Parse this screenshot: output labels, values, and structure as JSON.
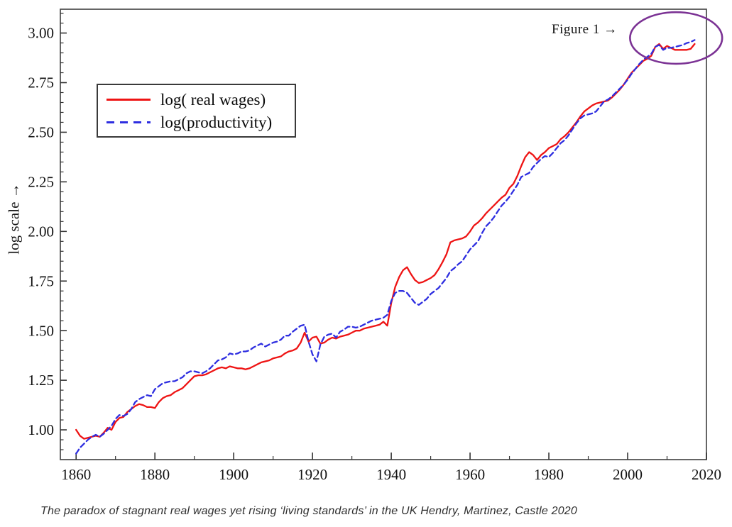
{
  "caption": "The paradox of stagnant real wages yet rising ‘living standards’ in the UK Hendry, Martinez, Castle 2020",
  "chart_data": {
    "type": "line",
    "title": "",
    "xlabel": "",
    "ylabel": "log scale →",
    "grid": false,
    "legend_position": "upper-left-inside",
    "xlim": [
      1856,
      2020
    ],
    "ylim": [
      0.85,
      3.12
    ],
    "x_ticks": {
      "major_start": 1860,
      "major_step": 20,
      "major_end": 2020,
      "minor_step": 10
    },
    "y_ticks": {
      "major_start": 1.0,
      "major_step": 0.25,
      "major_end": 3.0,
      "minor_step": 0.05
    },
    "annotation": {
      "label": "Figure 1 →",
      "ellipse": {
        "center_year": 2012.3,
        "center_value": 2.975,
        "rx_years": 11.7,
        "ry_value": 0.13,
        "color": "#7b3294"
      }
    },
    "colors": {
      "real_wages": "#ee1414",
      "productivity": "#2e2ee0",
      "border": "#4a4a4a",
      "ticks": "#333333"
    },
    "x_start_year": 1860,
    "series": [
      {
        "label": "log( real wages)",
        "color": "#ee1414",
        "style": "solid",
        "values": [
          1.0,
          0.97,
          0.955,
          0.96,
          0.965,
          0.97,
          0.965,
          0.985,
          1.01,
          1.0,
          1.04,
          1.06,
          1.065,
          1.09,
          1.105,
          1.12,
          1.13,
          1.125,
          1.115,
          1.115,
          1.11,
          1.14,
          1.16,
          1.17,
          1.175,
          1.19,
          1.2,
          1.21,
          1.23,
          1.25,
          1.27,
          1.275,
          1.275,
          1.28,
          1.29,
          1.3,
          1.31,
          1.315,
          1.31,
          1.32,
          1.315,
          1.31,
          1.31,
          1.305,
          1.31,
          1.32,
          1.33,
          1.34,
          1.345,
          1.35,
          1.36,
          1.365,
          1.37,
          1.385,
          1.395,
          1.4,
          1.41,
          1.44,
          1.49,
          1.445,
          1.465,
          1.47,
          1.435,
          1.44,
          1.455,
          1.465,
          1.46,
          1.47,
          1.475,
          1.48,
          1.49,
          1.5,
          1.5,
          1.51,
          1.515,
          1.52,
          1.525,
          1.53,
          1.545,
          1.525,
          1.64,
          1.72,
          1.77,
          1.805,
          1.82,
          1.785,
          1.755,
          1.74,
          1.745,
          1.755,
          1.765,
          1.78,
          1.81,
          1.845,
          1.885,
          1.945,
          1.955,
          1.96,
          1.965,
          1.975,
          2.0,
          2.03,
          2.045,
          2.065,
          2.09,
          2.11,
          2.13,
          2.15,
          2.17,
          2.185,
          2.22,
          2.24,
          2.28,
          2.33,
          2.375,
          2.4,
          2.385,
          2.36,
          2.385,
          2.4,
          2.42,
          2.43,
          2.44,
          2.465,
          2.48,
          2.5,
          2.525,
          2.55,
          2.58,
          2.605,
          2.62,
          2.635,
          2.645,
          2.65,
          2.655,
          2.66,
          2.675,
          2.695,
          2.715,
          2.74,
          2.77,
          2.8,
          2.82,
          2.84,
          2.86,
          2.87,
          2.885,
          2.93,
          2.945,
          2.92,
          2.935,
          2.925,
          2.915,
          2.915,
          2.915,
          2.915,
          2.92,
          2.945
        ]
      },
      {
        "label": "log(productivity)",
        "color": "#2e2ee0",
        "style": "dashed",
        "values": [
          0.88,
          0.91,
          0.93,
          0.95,
          0.965,
          0.975,
          0.965,
          0.98,
          1.0,
          1.02,
          1.055,
          1.075,
          1.07,
          1.08,
          1.105,
          1.14,
          1.155,
          1.165,
          1.175,
          1.17,
          1.205,
          1.22,
          1.235,
          1.24,
          1.245,
          1.245,
          1.255,
          1.265,
          1.285,
          1.295,
          1.295,
          1.29,
          1.285,
          1.295,
          1.31,
          1.33,
          1.35,
          1.355,
          1.365,
          1.385,
          1.38,
          1.385,
          1.395,
          1.395,
          1.4,
          1.415,
          1.425,
          1.435,
          1.42,
          1.43,
          1.44,
          1.445,
          1.455,
          1.475,
          1.475,
          1.495,
          1.51,
          1.525,
          1.53,
          1.445,
          1.38,
          1.345,
          1.43,
          1.47,
          1.48,
          1.485,
          1.465,
          1.495,
          1.505,
          1.52,
          1.52,
          1.515,
          1.52,
          1.53,
          1.54,
          1.55,
          1.555,
          1.56,
          1.565,
          1.58,
          1.65,
          1.69,
          1.7,
          1.7,
          1.69,
          1.665,
          1.64,
          1.63,
          1.645,
          1.66,
          1.685,
          1.7,
          1.715,
          1.74,
          1.765,
          1.8,
          1.815,
          1.835,
          1.85,
          1.88,
          1.91,
          1.93,
          1.95,
          1.99,
          2.025,
          2.045,
          2.07,
          2.1,
          2.13,
          2.15,
          2.175,
          2.205,
          2.235,
          2.275,
          2.285,
          2.295,
          2.325,
          2.345,
          2.365,
          2.38,
          2.375,
          2.395,
          2.42,
          2.445,
          2.46,
          2.485,
          2.515,
          2.545,
          2.57,
          2.585,
          2.59,
          2.595,
          2.605,
          2.63,
          2.655,
          2.665,
          2.68,
          2.7,
          2.72,
          2.74,
          2.765,
          2.795,
          2.82,
          2.845,
          2.865,
          2.88,
          2.895,
          2.93,
          2.94,
          2.915,
          2.925,
          2.925,
          2.93,
          2.935,
          2.94,
          2.95,
          2.955,
          2.965
        ]
      }
    ]
  }
}
